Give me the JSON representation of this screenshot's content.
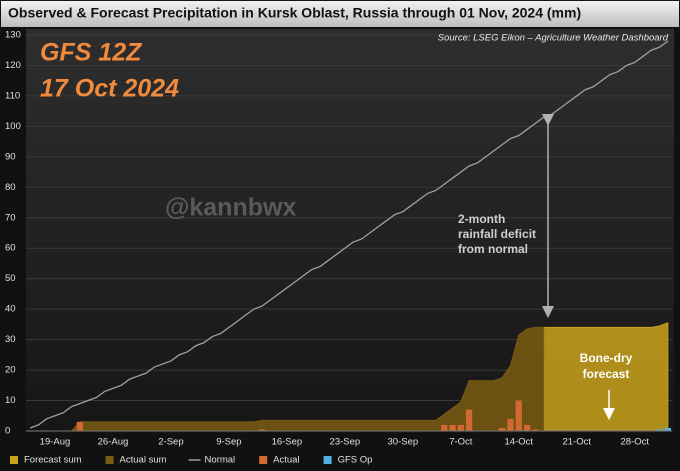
{
  "chart_data": {
    "type": "combo",
    "title": "Observed & Forecast Precipitation in Kursk Oblast, Russia through 01 Nov, 2024 (mm)",
    "annotations": {
      "run": [
        "GFS 12Z",
        "17 Oct 2024"
      ],
      "watermark": "@kannbwx",
      "source": "Source: LSEG Eikon – Agriculture Weather Dashboard",
      "deficit_note": [
        "2-month",
        "rainfall deficit",
        "from normal"
      ],
      "forecast_note": [
        "Bone-dry",
        "forecast"
      ]
    },
    "categories": [
      null,
      null,
      null,
      "19-Aug",
      null,
      null,
      null,
      null,
      null,
      null,
      "26-Aug",
      null,
      null,
      null,
      null,
      null,
      null,
      "2-Sep",
      null,
      null,
      null,
      null,
      null,
      null,
      "9-Sep",
      null,
      null,
      null,
      null,
      null,
      null,
      "16-Sep",
      null,
      null,
      null,
      null,
      null,
      null,
      "23-Sep",
      null,
      null,
      null,
      null,
      null,
      null,
      "30-Sep",
      null,
      null,
      null,
      null,
      null,
      null,
      "7-Oct",
      null,
      null,
      null,
      null,
      null,
      null,
      "14-Oct",
      null,
      null,
      null,
      null,
      null,
      null,
      "21-Oct",
      null,
      null,
      null,
      null,
      null,
      null,
      "28-Oct",
      null,
      null,
      null,
      null
    ],
    "ylim": [
      0,
      130
    ],
    "yticks": [
      0,
      10,
      20,
      30,
      40,
      50,
      60,
      70,
      80,
      90,
      100,
      110,
      120,
      130
    ],
    "grid": true,
    "series": [
      {
        "name": "Forecast sum",
        "type": "area",
        "color": "#c9a21c",
        "values": [
          null,
          null,
          null,
          null,
          null,
          null,
          null,
          null,
          null,
          null,
          null,
          null,
          null,
          null,
          null,
          null,
          null,
          null,
          null,
          null,
          null,
          null,
          null,
          null,
          null,
          null,
          null,
          null,
          null,
          null,
          null,
          null,
          null,
          null,
          null,
          null,
          null,
          null,
          null,
          null,
          null,
          null,
          null,
          null,
          null,
          null,
          null,
          null,
          null,
          null,
          null,
          null,
          null,
          null,
          null,
          null,
          null,
          null,
          null,
          null,
          null,
          null,
          34,
          34,
          34,
          34,
          34,
          34,
          34,
          34,
          34,
          34,
          34,
          34,
          34,
          34,
          34.5,
          35.5
        ]
      },
      {
        "name": "Actual sum",
        "type": "area",
        "color": "#7a5c12",
        "values": [
          0,
          0,
          0,
          0,
          0,
          0,
          3,
          3,
          3,
          3,
          3,
          3,
          3,
          3,
          3,
          3,
          3,
          3,
          3,
          3,
          3,
          3,
          3,
          3,
          3,
          3,
          3,
          3,
          3.5,
          3.5,
          3.5,
          3.5,
          3.5,
          3.5,
          3.5,
          3.5,
          3.5,
          3.5,
          3.5,
          3.5,
          3.5,
          3.5,
          3.5,
          3.5,
          3.5,
          3.5,
          3.5,
          3.5,
          3.5,
          3.5,
          5.5,
          7.5,
          9.5,
          16.5,
          16.5,
          16.5,
          16.5,
          17.5,
          21.5,
          31.5,
          33.5,
          34,
          34,
          null,
          null,
          null,
          null,
          null,
          null,
          null,
          null,
          null,
          null,
          null,
          null,
          null,
          null,
          null
        ]
      },
      {
        "name": "Normal",
        "type": "line",
        "color": "#a0a0a0",
        "values": [
          1,
          2,
          4,
          5,
          6,
          8,
          9,
          10,
          11,
          13,
          14,
          15,
          17,
          18,
          19,
          21,
          22,
          23,
          25,
          26,
          28,
          29,
          31,
          32,
          34,
          36,
          38,
          40,
          41,
          43,
          45,
          47,
          49,
          51,
          53,
          54,
          56,
          58,
          60,
          62,
          63,
          65,
          67,
          69,
          71,
          72,
          74,
          76,
          78,
          79,
          81,
          83,
          85,
          87,
          88,
          90,
          92,
          94,
          96,
          97,
          99,
          101,
          103,
          104,
          106,
          108,
          110,
          112,
          113,
          115,
          117,
          118,
          120,
          121,
          123,
          125,
          126,
          128
        ]
      },
      {
        "name": "Actual",
        "type": "bar",
        "color": "#d06a30",
        "values": [
          0,
          0,
          0,
          0,
          0,
          0,
          3,
          0,
          0,
          0,
          0,
          0,
          0,
          0,
          0,
          0,
          0,
          0,
          0,
          0,
          0,
          0,
          0,
          0,
          0,
          0,
          0,
          0,
          0.5,
          0,
          0,
          0,
          0,
          0,
          0,
          0,
          0,
          0,
          0,
          0,
          0,
          0,
          0,
          0,
          0,
          0,
          0,
          0,
          0,
          0,
          2,
          2,
          2,
          7,
          0,
          0,
          0,
          1,
          4,
          10,
          2,
          0.5,
          0,
          null,
          null,
          null,
          null,
          null,
          null,
          null,
          null,
          null,
          null,
          null,
          null,
          null,
          null,
          null
        ]
      },
      {
        "name": "GFS Op",
        "type": "bar",
        "color": "#4fb3e8",
        "values": [
          null,
          null,
          null,
          null,
          null,
          null,
          null,
          null,
          null,
          null,
          null,
          null,
          null,
          null,
          null,
          null,
          null,
          null,
          null,
          null,
          null,
          null,
          null,
          null,
          null,
          null,
          null,
          null,
          null,
          null,
          null,
          null,
          null,
          null,
          null,
          null,
          null,
          null,
          null,
          null,
          null,
          null,
          null,
          null,
          null,
          null,
          null,
          null,
          null,
          null,
          null,
          null,
          null,
          null,
          null,
          null,
          null,
          null,
          null,
          null,
          null,
          null,
          0,
          0,
          0,
          0,
          0,
          0,
          0,
          0,
          0,
          0,
          0,
          0,
          0,
          0,
          0.5,
          1
        ]
      }
    ]
  }
}
